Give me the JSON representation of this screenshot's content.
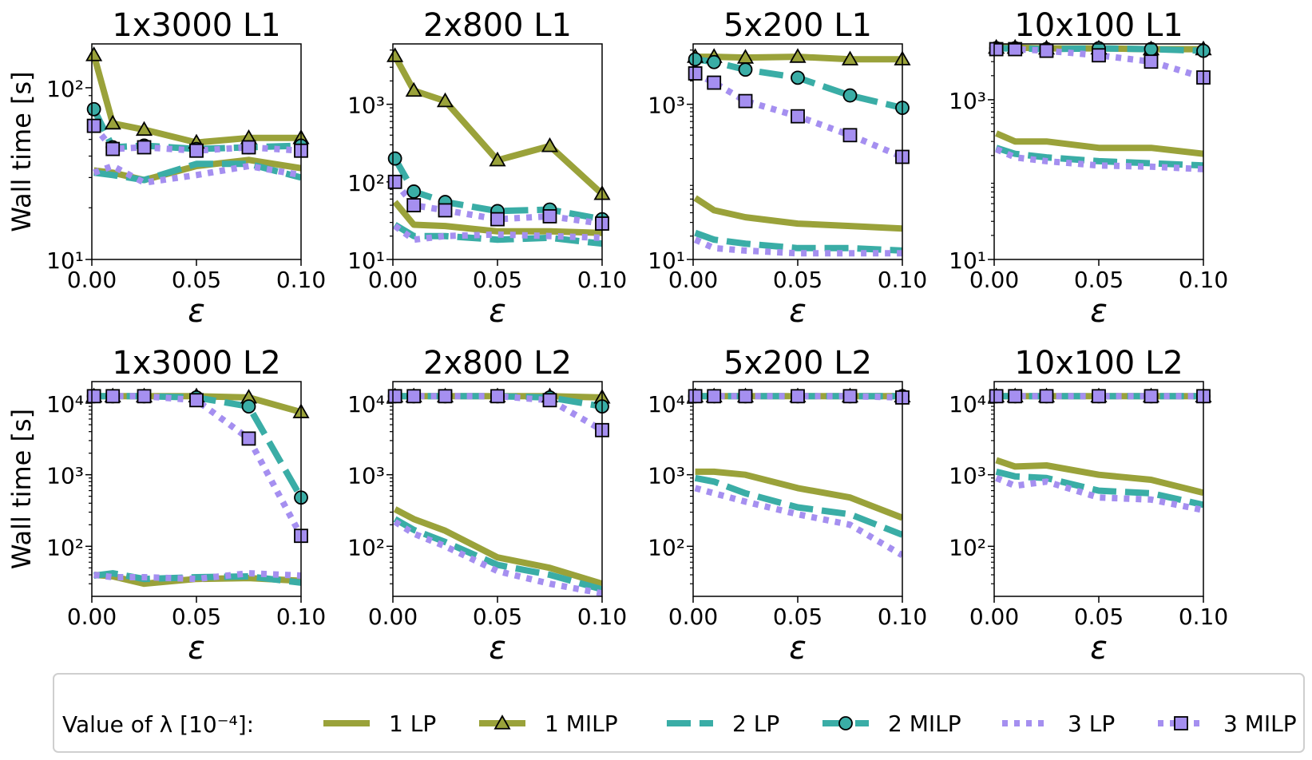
{
  "figure": {
    "ylabel": "Wall time [s]",
    "xlabel": "ε",
    "legend_title": "Value of λ [10⁻⁴]:"
  },
  "legend": [
    {
      "label": "1 LP",
      "key": "s1lp"
    },
    {
      "label": "1 MILP",
      "key": "s1milp"
    },
    {
      "label": "2 LP",
      "key": "s2lp"
    },
    {
      "label": "2 MILP",
      "key": "s2milp"
    },
    {
      "label": "3 LP",
      "key": "s3lp"
    },
    {
      "label": "3 MILP",
      "key": "s3milp"
    }
  ],
  "styles": {
    "s1lp": {
      "color": "#9aa23a",
      "dash": "none",
      "marker": "none"
    },
    "s1milp": {
      "color": "#9aa23a",
      "dash": "none",
      "marker": "triangle"
    },
    "s2lp": {
      "color": "#3aada6",
      "dash": "dash",
      "marker": "none"
    },
    "s2milp": {
      "color": "#3aada6",
      "dash": "dash",
      "marker": "circle"
    },
    "s3lp": {
      "color": "#a58ff0",
      "dash": "dot",
      "marker": "none"
    },
    "s3milp": {
      "color": "#a58ff0",
      "dash": "dot",
      "marker": "square"
    }
  },
  "chart_data": [
    {
      "type": "line",
      "title": "1x3000 L1",
      "xlabel": "ε",
      "ylabel": "Wall time [s]",
      "yscale": "log",
      "xlim": [
        0,
        0.1
      ],
      "ylim": [
        10,
        180
      ],
      "xticks": [
        0,
        0.05,
        0.1
      ],
      "xtick_labels": [
        "0.00",
        "0.05",
        "0.10"
      ],
      "yticks": [
        10,
        100
      ],
      "ytick_labels": [
        "10¹",
        "10²"
      ],
      "x": [
        0.001,
        0.01,
        0.025,
        0.05,
        0.075,
        0.1
      ],
      "series": [
        {
          "name": "1 LP",
          "key": "s1lp",
          "values": [
            33,
            32,
            29,
            35,
            38,
            34
          ]
        },
        {
          "name": "1 MILP",
          "key": "s1milp",
          "values": [
            155,
            62,
            57,
            48,
            51,
            51
          ]
        },
        {
          "name": "2 LP",
          "key": "s2lp",
          "values": [
            32,
            31,
            29,
            36,
            36,
            30
          ]
        },
        {
          "name": "2 MILP",
          "key": "s2milp",
          "values": [
            75,
            45,
            46,
            44,
            45,
            46
          ]
        },
        {
          "name": "3 LP",
          "key": "s3lp",
          "values": [
            32,
            35,
            28,
            31,
            35,
            31
          ]
        },
        {
          "name": "3 MILP",
          "key": "s3milp",
          "values": [
            60,
            44,
            45,
            43,
            45,
            43
          ]
        }
      ]
    },
    {
      "type": "line",
      "title": "2x800 L1",
      "xlabel": "ε",
      "ylabel": "Wall time [s]",
      "yscale": "log",
      "xlim": [
        0,
        0.1
      ],
      "ylim": [
        10,
        6000
      ],
      "xticks": [
        0,
        0.05,
        0.1
      ],
      "xtick_labels": [
        "0.00",
        "0.05",
        "0.10"
      ],
      "yticks": [
        10,
        100,
        1000
      ],
      "ytick_labels": [
        "10¹",
        "10²",
        "10³"
      ],
      "x": [
        0.001,
        0.01,
        0.025,
        0.05,
        0.075,
        0.1
      ],
      "series": [
        {
          "name": "1 LP",
          "key": "s1lp",
          "values": [
            55,
            28,
            27,
            23,
            23,
            22
          ]
        },
        {
          "name": "1 MILP",
          "key": "s1milp",
          "values": [
            4200,
            1500,
            1100,
            190,
            290,
            70
          ]
        },
        {
          "name": "2 LP",
          "key": "s2lp",
          "values": [
            28,
            20,
            20,
            18,
            19,
            16
          ]
        },
        {
          "name": "2 MILP",
          "key": "s2milp",
          "values": [
            200,
            75,
            55,
            42,
            44,
            33
          ]
        },
        {
          "name": "3 LP",
          "key": "s3lp",
          "values": [
            27,
            18,
            20,
            21,
            20,
            19
          ]
        },
        {
          "name": "3 MILP",
          "key": "s3milp",
          "values": [
            100,
            50,
            43,
            33,
            36,
            29
          ]
        }
      ]
    },
    {
      "type": "line",
      "title": "5x200 L1",
      "xlabel": "ε",
      "ylabel": "Wall time [s]",
      "yscale": "log",
      "xlim": [
        0,
        0.1
      ],
      "ylim": [
        10,
        6000
      ],
      "xticks": [
        0,
        0.05,
        0.1
      ],
      "xtick_labels": [
        "0.00",
        "0.05",
        "0.10"
      ],
      "yticks": [
        10,
        1000
      ],
      "ytick_labels": [
        "10¹",
        "10³"
      ],
      "x": [
        0.001,
        0.01,
        0.025,
        0.05,
        0.075,
        0.1
      ],
      "series": [
        {
          "name": "1 LP",
          "key": "s1lp",
          "values": [
            62,
            43,
            35,
            29,
            27,
            25
          ]
        },
        {
          "name": "1 MILP",
          "key": "s1milp",
          "values": [
            4100,
            4100,
            4000,
            4100,
            3800,
            3800
          ]
        },
        {
          "name": "2 LP",
          "key": "s2lp",
          "values": [
            22,
            18,
            16,
            14,
            14,
            13
          ]
        },
        {
          "name": "2 MILP",
          "key": "s2milp",
          "values": [
            3800,
            3500,
            2800,
            2200,
            1300,
            900
          ]
        },
        {
          "name": "3 LP",
          "key": "s3lp",
          "values": [
            18,
            14,
            13,
            12,
            12,
            12
          ]
        },
        {
          "name": "3 MILP",
          "key": "s3milp",
          "values": [
            2500,
            1900,
            1100,
            700,
            400,
            210
          ]
        }
      ]
    },
    {
      "type": "line",
      "title": "10x100 L1",
      "xlabel": "ε",
      "ylabel": "Wall time [s]",
      "yscale": "log",
      "xlim": [
        0,
        0.1
      ],
      "ylim": [
        10,
        5000
      ],
      "xticks": [
        0,
        0.05,
        0.1
      ],
      "xtick_labels": [
        "0.00",
        "0.05",
        "0.10"
      ],
      "yticks": [
        10,
        1000
      ],
      "ytick_labels": [
        "10¹",
        "10³"
      ],
      "x": [
        0.001,
        0.01,
        0.025,
        0.05,
        0.075,
        0.1
      ],
      "series": [
        {
          "name": "1 LP",
          "key": "s1lp",
          "values": [
            380,
            300,
            300,
            250,
            250,
            210
          ]
        },
        {
          "name": "1 MILP",
          "key": "s1milp",
          "values": [
            4500,
            4500,
            4400,
            4400,
            4300,
            4300
          ]
        },
        {
          "name": "2 LP",
          "key": "s2lp",
          "values": [
            250,
            210,
            190,
            170,
            160,
            150
          ]
        },
        {
          "name": "2 MILP",
          "key": "s2milp",
          "values": [
            4400,
            4400,
            4300,
            4400,
            4300,
            4100
          ]
        },
        {
          "name": "3 LP",
          "key": "s3lp",
          "values": [
            240,
            190,
            170,
            150,
            145,
            135
          ]
        },
        {
          "name": "3 MILP",
          "key": "s3milp",
          "values": [
            4300,
            4300,
            4100,
            3600,
            3000,
            1900
          ]
        }
      ]
    },
    {
      "type": "line",
      "title": "1x3000 L2",
      "xlabel": "ε",
      "ylabel": "Wall time [s]",
      "yscale": "log",
      "xlim": [
        0,
        0.1
      ],
      "ylim": [
        20,
        20000
      ],
      "xticks": [
        0,
        0.05,
        0.1
      ],
      "xtick_labels": [
        "0.00",
        "0.05",
        "0.10"
      ],
      "yticks": [
        100,
        1000,
        10000
      ],
      "ytick_labels": [
        "10²",
        "10³",
        "10⁴"
      ],
      "x": [
        0.001,
        0.01,
        0.025,
        0.05,
        0.075,
        0.1
      ],
      "series": [
        {
          "name": "1 LP",
          "key": "s1lp",
          "values": [
            40,
            38,
            30,
            35,
            36,
            33
          ]
        },
        {
          "name": "1 MILP",
          "key": "s1milp",
          "values": [
            12500,
            12500,
            12500,
            12500,
            12000,
            7500
          ]
        },
        {
          "name": "2 LP",
          "key": "s2lp",
          "values": [
            39,
            42,
            35,
            37,
            38,
            31
          ]
        },
        {
          "name": "2 MILP",
          "key": "s2milp",
          "values": [
            12500,
            12500,
            12500,
            12000,
            9000,
            480
          ]
        },
        {
          "name": "3 LP",
          "key": "s3lp",
          "values": [
            40,
            37,
            37,
            35,
            42,
            39
          ]
        },
        {
          "name": "3 MILP",
          "key": "s3milp",
          "values": [
            12500,
            12500,
            12500,
            11000,
            3200,
            140
          ]
        }
      ]
    },
    {
      "type": "line",
      "title": "2x800 L2",
      "xlabel": "ε",
      "ylabel": "Wall time [s]",
      "yscale": "log",
      "xlim": [
        0,
        0.1
      ],
      "ylim": [
        20,
        20000
      ],
      "xticks": [
        0,
        0.05,
        0.1
      ],
      "xtick_labels": [
        "0.00",
        "0.05",
        "0.10"
      ],
      "yticks": [
        100,
        1000,
        10000
      ],
      "ytick_labels": [
        "10²",
        "10³",
        "10⁴"
      ],
      "x": [
        0.001,
        0.01,
        0.025,
        0.05,
        0.075,
        0.1
      ],
      "series": [
        {
          "name": "1 LP",
          "key": "s1lp",
          "values": [
            330,
            240,
            165,
            70,
            50,
            30
          ]
        },
        {
          "name": "1 MILP",
          "key": "s1milp",
          "values": [
            12500,
            12500,
            12500,
            12500,
            12500,
            12000
          ]
        },
        {
          "name": "2 LP",
          "key": "s2lp",
          "values": [
            240,
            170,
            115,
            55,
            40,
            25
          ]
        },
        {
          "name": "2 MILP",
          "key": "s2milp",
          "values": [
            12500,
            12500,
            12500,
            12500,
            12000,
            9000
          ]
        },
        {
          "name": "3 LP",
          "key": "s3lp",
          "values": [
            220,
            150,
            100,
            45,
            30,
            22
          ]
        },
        {
          "name": "3 MILP",
          "key": "s3milp",
          "values": [
            12500,
            12500,
            12500,
            12500,
            11000,
            4200
          ]
        }
      ]
    },
    {
      "type": "line",
      "title": "5x200 L2",
      "xlabel": "ε",
      "ylabel": "Wall time [s]",
      "yscale": "log",
      "xlim": [
        0,
        0.1
      ],
      "ylim": [
        20,
        20000
      ],
      "xticks": [
        0,
        0.05,
        0.1
      ],
      "xtick_labels": [
        "0.00",
        "0.05",
        "0.10"
      ],
      "yticks": [
        100,
        1000,
        10000
      ],
      "ytick_labels": [
        "10²",
        "10³",
        "10⁴"
      ],
      "x": [
        0.001,
        0.01,
        0.025,
        0.05,
        0.075,
        0.1
      ],
      "series": [
        {
          "name": "1 LP",
          "key": "s1lp",
          "values": [
            1100,
            1100,
            1000,
            650,
            480,
            250
          ]
        },
        {
          "name": "1 MILP",
          "key": "s1milp",
          "values": [
            12500,
            12500,
            12500,
            12500,
            12500,
            12500
          ]
        },
        {
          "name": "2 LP",
          "key": "s2lp",
          "values": [
            900,
            800,
            550,
            350,
            280,
            145
          ]
        },
        {
          "name": "2 MILP",
          "key": "s2milp",
          "values": [
            12500,
            12500,
            12500,
            12500,
            12500,
            12500
          ]
        },
        {
          "name": "3 LP",
          "key": "s3lp",
          "values": [
            650,
            550,
            420,
            280,
            200,
            75
          ]
        },
        {
          "name": "3 MILP",
          "key": "s3milp",
          "values": [
            12500,
            12500,
            12500,
            12500,
            12500,
            12000
          ]
        }
      ]
    },
    {
      "type": "line",
      "title": "10x100 L2",
      "xlabel": "ε",
      "ylabel": "Wall time [s]",
      "yscale": "log",
      "xlim": [
        0,
        0.1
      ],
      "ylim": [
        20,
        20000
      ],
      "xticks": [
        0,
        0.05,
        0.1
      ],
      "xtick_labels": [
        "0.00",
        "0.05",
        "0.10"
      ],
      "yticks": [
        100,
        1000,
        10000
      ],
      "ytick_labels": [
        "10²",
        "10³",
        "10⁴"
      ],
      "x": [
        0.001,
        0.01,
        0.025,
        0.05,
        0.075,
        0.1
      ],
      "series": [
        {
          "name": "1 LP",
          "key": "s1lp",
          "values": [
            1600,
            1300,
            1350,
            1000,
            850,
            560
          ]
        },
        {
          "name": "1 MILP",
          "key": "s1milp",
          "values": [
            12500,
            12500,
            12500,
            12500,
            12500,
            12500
          ]
        },
        {
          "name": "2 LP",
          "key": "s2lp",
          "values": [
            1100,
            950,
            900,
            600,
            550,
            380
          ]
        },
        {
          "name": "2 MILP",
          "key": "s2milp",
          "values": [
            12500,
            12500,
            12500,
            12500,
            12500,
            12500
          ]
        },
        {
          "name": "3 LP",
          "key": "s3lp",
          "values": [
            900,
            700,
            800,
            480,
            450,
            320
          ]
        },
        {
          "name": "3 MILP",
          "key": "s3milp",
          "values": [
            12500,
            12500,
            12500,
            12500,
            12500,
            12500
          ]
        }
      ]
    }
  ]
}
